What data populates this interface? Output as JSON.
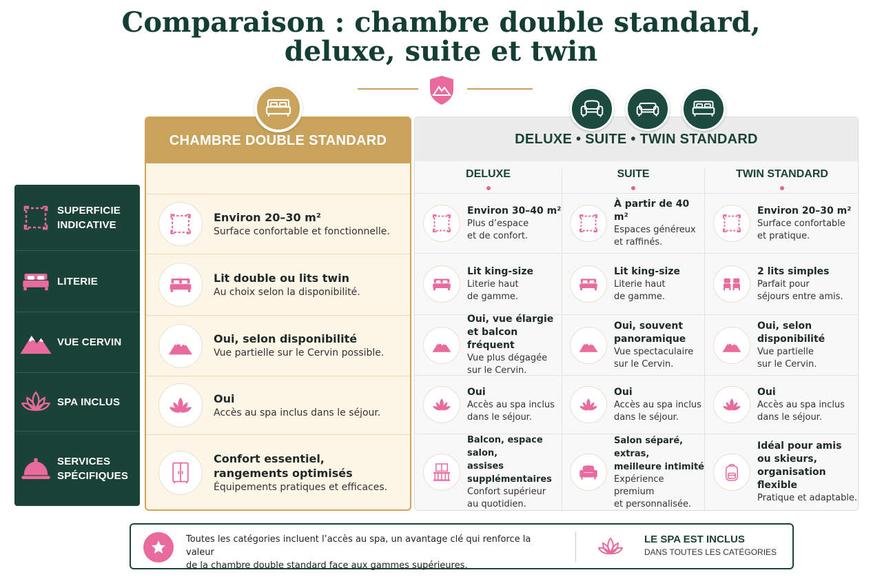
{
  "title": {
    "line1": "Comparaison : chambre double standard,",
    "line2": "deluxe, suite et twin"
  },
  "colors": {
    "dark_green": "#1b4237",
    "gold": "#c9a25c",
    "pink": "#e96a9d",
    "cream": "#fdf5e6"
  },
  "sidebar": {
    "items": [
      {
        "label1": "SUPERFICIE",
        "label2": "INDICATIVE",
        "icon": "area-frame-icon"
      },
      {
        "label1": "LITERIE",
        "label2": "",
        "icon": "bed-icon"
      },
      {
        "label1": "VUE CERVIN",
        "label2": "",
        "icon": "mountain-icon"
      },
      {
        "label1": "SPA INCLUS",
        "label2": "",
        "icon": "lotus-icon"
      },
      {
        "label1": "SERVICES",
        "label2": "SPÉCIFIQUES",
        "icon": "cloche-icon"
      }
    ]
  },
  "standard": {
    "header": "CHAMBRE DOUBLE STANDARD",
    "rows": [
      {
        "t1": "Environ 20–30 m²",
        "t1b": "",
        "t2": "Surface confortable et fonctionnelle.",
        "icon": "area-frame-icon"
      },
      {
        "t1": "Lit double ou lits twin",
        "t1b": "",
        "t2": "Au choix selon la disponibilité.",
        "icon": "bed-icon"
      },
      {
        "t1": "Oui, selon disponibilité",
        "t1b": "",
        "t2": "Vue partielle sur le Cervin possible.",
        "icon": "mountain-icon"
      },
      {
        "t1": "Oui",
        "t1b": "",
        "t2": "Accès au spa inclus dans le séjour.",
        "icon": "lotus-icon"
      },
      {
        "t1": "Confort essentiel,",
        "t1b": "rangements optimisés",
        "t2": "Équipements pratiques et efficaces.",
        "icon": "wardrobe-icon"
      }
    ]
  },
  "premium": {
    "header": "DELUXE • SUITE • TWIN STANDARD",
    "columns": [
      "DELUXE",
      "SUITE",
      "TWIN STANDARD"
    ],
    "cells": [
      [
        {
          "l1": "Environ 30–40 m²",
          "l2": "",
          "l3": "Plus d’espace",
          "l4": "et de confort.",
          "icon": "area-frame-icon"
        },
        {
          "l1": "À partir de 40 m²",
          "l2": "",
          "l3": "Espaces généreux",
          "l4": "et raffinés.",
          "icon": "area-frame-icon"
        },
        {
          "l1": "Environ 20–30 m²",
          "l2": "",
          "l3": "Surface confortable",
          "l4": "et pratique.",
          "icon": "area-frame-icon"
        }
      ],
      [
        {
          "l1": "Lit king-size",
          "l2": "",
          "l3": "Literie haut",
          "l4": "de gamme.",
          "icon": "bed-icon"
        },
        {
          "l1": "Lit king-size",
          "l2": "",
          "l3": "Literie haut",
          "l4": "de gamme.",
          "icon": "bed-icon"
        },
        {
          "l1": "2 lits simples",
          "l2": "",
          "l3": "Parfait pour",
          "l4": "séjours entre amis.",
          "icon": "twin-beds-icon"
        }
      ],
      [
        {
          "l1": "Oui, vue élargie",
          "l2": "et balcon fréquent",
          "l3": "Vue plus dégagée",
          "l4": "sur le Cervin.",
          "icon": "mountain-icon"
        },
        {
          "l1": "Oui, souvent",
          "l2": "panoramique",
          "l3": "Vue spectaculaire",
          "l4": "sur le Cervin.",
          "icon": "mountain-icon"
        },
        {
          "l1": "Oui, selon",
          "l2": "disponibilité",
          "l3": "Vue partielle",
          "l4": "sur le Cervin.",
          "icon": "mountain-icon"
        }
      ],
      [
        {
          "l1": "Oui",
          "l2": "",
          "l3": "Accès au spa inclus",
          "l4": "dans le séjour.",
          "icon": "lotus-icon"
        },
        {
          "l1": "Oui",
          "l2": "",
          "l3": "Accès au spa inclus",
          "l4": "dans le séjour.",
          "icon": "lotus-icon"
        },
        {
          "l1": "Oui",
          "l2": "",
          "l3": "Accès au spa inclus",
          "l4": "dans le séjour.",
          "icon": "lotus-icon"
        }
      ],
      [
        {
          "l1": "Balcon, espace salon,",
          "l2": "assises supplémentaires",
          "l3": "Confort supérieur",
          "l4": "au quotidien.",
          "icon": "balcony-icon"
        },
        {
          "l1": "Salon séparé, extras,",
          "l2": "meilleure intimité",
          "l3": "Expérience premium",
          "l4": "et personnalisée.",
          "icon": "armchair-icon"
        },
        {
          "l1": "Idéal pour amis",
          "l2": "ou skieurs,",
          "l2b": "organisation flexible",
          "l3": "Pratique et adaptable.",
          "l4": "",
          "icon": "backpack-icon"
        }
      ]
    ]
  },
  "footer": {
    "text1": "Toutes les catégories incluent l’accès au spa, un avantage clé qui renforce la valeur",
    "text2": "de la chambre double standard face aux gammes supérieures.",
    "badge1": "LE SPA EST INCLUS",
    "badge2": "DANS TOUTES LES CATÉGORIES"
  }
}
